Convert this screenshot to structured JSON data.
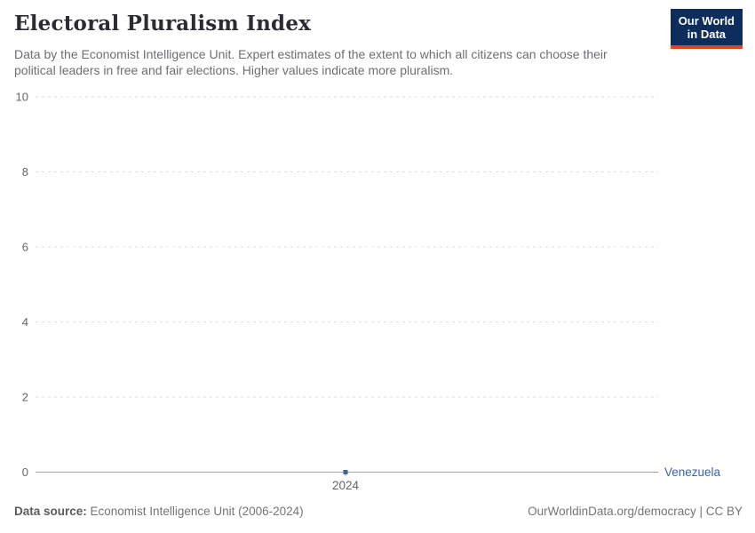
{
  "header": {
    "title": "Electoral Pluralism Index",
    "subtitle_lines": [
      "Data by the Economist Intelligence Unit. Expert estimates of the extent to which all citizens can choose their",
      "political leaders in free and fair elections. Higher values indicate more pluralism."
    ],
    "logo": {
      "line1": "Our World",
      "line2": "in Data",
      "bg_color": "#0d2d5c",
      "accent_color": "#e0422e"
    }
  },
  "footer": {
    "source_label": "Data source:",
    "source_text": " Economist Intelligence Unit (2006-2024)",
    "right_text": "OurWorldinData.org/democracy | CC BY"
  },
  "chart_data": {
    "type": "scatter",
    "title": "Electoral Pluralism Index",
    "xlabel": "",
    "ylabel": "",
    "x": [
      2024
    ],
    "xtick_labels": [
      "2024"
    ],
    "series": [
      {
        "name": "Venezuela",
        "values": [
          0
        ]
      }
    ],
    "ylim": [
      0,
      10
    ],
    "yticks": [
      0,
      2,
      4,
      6,
      8,
      10
    ],
    "grid": true,
    "legend_position": "right-of-axis-end",
    "colors": {
      "series": "#3d62a8",
      "grid": "#dddddd",
      "axis": "#a1a1a1",
      "tick_label": "#666666"
    }
  }
}
